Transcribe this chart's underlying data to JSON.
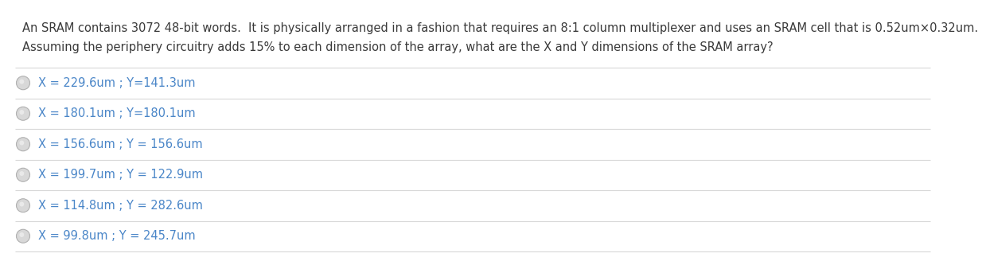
{
  "title_line1": "An SRAM contains 3072 48-bit words.  It is physically arranged in a fashion that requires an 8:1 column multiplexer and uses an SRAM cell that is 0.52um×0.32um.",
  "title_line2": "Assuming the periphery circuitry adds 15% to each dimension of the array, what are the X and Y dimensions of the SRAM array?",
  "options": [
    "X = 229.6um ; Y=141.3um",
    "X = 180.1um ; Y=180.1um",
    "X = 156.6um ; Y = 156.6um",
    "X = 199.7um ; Y = 122.9um",
    "X = 114.8um ; Y = 282.6um",
    "X = 99.8um ; Y = 245.7um"
  ],
  "text_color": "#4a86c8",
  "question_color": "#3a3a3a",
  "background_color": "#ffffff",
  "separator_color": "#d8d8d8",
  "circle_edge_color": "#b0b0b0",
  "circle_fill_color": "#d8d8d8",
  "title_fontsize": 10.5,
  "option_fontsize": 10.5,
  "fig_width": 11.69,
  "fig_height": 3.08
}
